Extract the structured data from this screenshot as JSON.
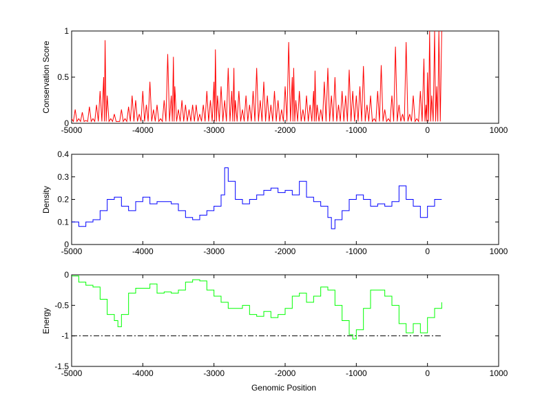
{
  "chart_data": [
    {
      "type": "line",
      "title": "",
      "xlabel": "",
      "ylabel": "Conservation Score",
      "xlim": [
        -5000,
        1000
      ],
      "ylim": [
        0,
        1
      ],
      "xticks": [
        "-5000",
        "-4000",
        "-3000",
        "-2000",
        "-1000",
        "0",
        "1000"
      ],
      "yticks": [
        "0",
        "0.5",
        "1"
      ],
      "ytick_values": [
        0,
        0.5,
        1
      ],
      "color": "#ff0000",
      "series": [
        {
          "name": "conservation",
          "x": [
            -5000,
            -4950,
            -4900,
            -4850,
            -4800,
            -4750,
            -4700,
            -4650,
            -4600,
            -4550,
            -4530,
            -4500,
            -4450,
            -4400,
            -4350,
            -4300,
            -4250,
            -4200,
            -4150,
            -4100,
            -4050,
            -4000,
            -3950,
            -3900,
            -3850,
            -3800,
            -3750,
            -3700,
            -3650,
            -3600,
            -3570,
            -3550,
            -3500,
            -3450,
            -3400,
            -3350,
            -3300,
            -3250,
            -3200,
            -3150,
            -3100,
            -3050,
            -3000,
            -2980,
            -2950,
            -2900,
            -2850,
            -2800,
            -2750,
            -2720,
            -2700,
            -2650,
            -2600,
            -2550,
            -2500,
            -2450,
            -2400,
            -2350,
            -2300,
            -2250,
            -2200,
            -2150,
            -2100,
            -2050,
            -2000,
            -1950,
            -1900,
            -1880,
            -1850,
            -1800,
            -1750,
            -1700,
            -1650,
            -1600,
            -1580,
            -1550,
            -1500,
            -1450,
            -1400,
            -1350,
            -1300,
            -1250,
            -1200,
            -1150,
            -1100,
            -1050,
            -1000,
            -950,
            -900,
            -850,
            -800,
            -750,
            -700,
            -650,
            -600,
            -550,
            -500,
            -450,
            -400,
            -350,
            -300,
            -250,
            -200,
            -150,
            -100,
            -50,
            -20,
            0,
            30,
            60,
            100,
            130,
            160,
            200
          ],
          "y": [
            0.05,
            0.15,
            0.05,
            0.12,
            0.03,
            0.18,
            0.05,
            0.2,
            0.35,
            0.5,
            0.9,
            0.3,
            0.05,
            0.1,
            0.02,
            0.15,
            0.05,
            0.18,
            0.3,
            0.25,
            0.1,
            0.35,
            0.2,
            0.45,
            0.15,
            0.2,
            0.05,
            0.25,
            0.75,
            0.3,
            0.72,
            0.4,
            0.15,
            0.25,
            0.2,
            0.15,
            0.2,
            0.2,
            0.1,
            0.2,
            0.35,
            0.25,
            0.45,
            0.8,
            0.3,
            0.4,
            0.25,
            0.6,
            0.35,
            0.6,
            0.25,
            0.35,
            0.15,
            0.3,
            0.2,
            0.35,
            0.6,
            0.25,
            0.45,
            0.3,
            0.2,
            0.35,
            0.25,
            0.15,
            0.4,
            0.88,
            0.5,
            0.6,
            0.25,
            0.35,
            0.15,
            0.3,
            0.2,
            0.35,
            0.57,
            0.2,
            0.15,
            0.45,
            0.6,
            0.3,
            0.5,
            0.2,
            0.35,
            0.3,
            0.58,
            0.35,
            0.3,
            0.4,
            0.62,
            0.2,
            0.3,
            0.05,
            0.35,
            0.63,
            0.15,
            0.05,
            0.3,
            0.83,
            0.2,
            0.1,
            0.88,
            0.1,
            0.3,
            0.05,
            0.35,
            0.7,
            0.2,
            0.55,
            1.0,
            0.3,
            1.0,
            0.4,
            1.0,
            1.0
          ]
        }
      ]
    },
    {
      "type": "line",
      "title": "",
      "xlabel": "",
      "ylabel": "Density",
      "xlim": [
        -5000,
        1000
      ],
      "ylim": [
        0,
        0.4
      ],
      "xticks": [
        "-5000",
        "-4000",
        "-3000",
        "-2000",
        "-1000",
        "0",
        "1000"
      ],
      "yticks": [
        "0",
        "0.1",
        "0.2",
        "0.3",
        "0.4"
      ],
      "ytick_values": [
        0,
        0.1,
        0.2,
        0.3,
        0.4
      ],
      "color": "#0000ff",
      "series": [
        {
          "name": "density",
          "x": [
            -5000,
            -4900,
            -4800,
            -4700,
            -4600,
            -4500,
            -4400,
            -4300,
            -4200,
            -4100,
            -4000,
            -3900,
            -3800,
            -3700,
            -3600,
            -3500,
            -3400,
            -3300,
            -3200,
            -3100,
            -3000,
            -2900,
            -2850,
            -2800,
            -2700,
            -2600,
            -2500,
            -2400,
            -2300,
            -2200,
            -2100,
            -2000,
            -1900,
            -1800,
            -1700,
            -1600,
            -1500,
            -1400,
            -1350,
            -1300,
            -1200,
            -1100,
            -1000,
            -900,
            -800,
            -700,
            -600,
            -500,
            -400,
            -300,
            -200,
            -100,
            0,
            100,
            200
          ],
          "y": [
            0.1,
            0.08,
            0.1,
            0.11,
            0.15,
            0.2,
            0.21,
            0.17,
            0.15,
            0.19,
            0.21,
            0.18,
            0.19,
            0.19,
            0.18,
            0.15,
            0.12,
            0.11,
            0.13,
            0.15,
            0.17,
            0.22,
            0.34,
            0.28,
            0.2,
            0.18,
            0.2,
            0.22,
            0.24,
            0.25,
            0.23,
            0.24,
            0.22,
            0.28,
            0.21,
            0.19,
            0.17,
            0.12,
            0.07,
            0.11,
            0.15,
            0.2,
            0.22,
            0.2,
            0.17,
            0.18,
            0.17,
            0.19,
            0.26,
            0.2,
            0.17,
            0.12,
            0.17,
            0.2,
            0.2
          ]
        }
      ]
    },
    {
      "type": "line",
      "title": "",
      "xlabel": "Genomic Position",
      "ylabel": "Energy",
      "xlim": [
        -5000,
        1000
      ],
      "ylim": [
        -1.5,
        0
      ],
      "xticks": [
        "-5000",
        "-4000",
        "-3000",
        "-2000",
        "-1000",
        "0",
        "1000"
      ],
      "yticks": [
        "-1.5",
        "-1",
        "-0.5",
        "0"
      ],
      "ytick_values": [
        -1.5,
        -1,
        -0.5,
        0
      ],
      "color": "#00ff00",
      "threshold": {
        "y": -1,
        "x": [
          -5000,
          200
        ],
        "style": "dash-dot",
        "color": "#000000"
      },
      "series": [
        {
          "name": "energy",
          "x": [
            -5000,
            -4900,
            -4800,
            -4700,
            -4600,
            -4500,
            -4400,
            -4350,
            -4300,
            -4200,
            -4100,
            -4000,
            -3900,
            -3800,
            -3700,
            -3600,
            -3500,
            -3400,
            -3300,
            -3200,
            -3100,
            -3000,
            -2900,
            -2800,
            -2700,
            -2600,
            -2500,
            -2400,
            -2300,
            -2200,
            -2100,
            -2000,
            -1900,
            -1800,
            -1700,
            -1600,
            -1500,
            -1400,
            -1300,
            -1200,
            -1100,
            -1050,
            -1000,
            -900,
            -800,
            -700,
            -600,
            -500,
            -400,
            -300,
            -200,
            -100,
            0,
            100,
            200
          ],
          "y": [
            -0.02,
            -0.12,
            -0.17,
            -0.2,
            -0.4,
            -0.65,
            -0.75,
            -0.85,
            -0.65,
            -0.3,
            -0.22,
            -0.22,
            -0.15,
            -0.3,
            -0.28,
            -0.3,
            -0.25,
            -0.12,
            -0.08,
            -0.1,
            -0.25,
            -0.35,
            -0.45,
            -0.55,
            -0.55,
            -0.5,
            -0.65,
            -0.68,
            -0.6,
            -0.7,
            -0.65,
            -0.55,
            -0.35,
            -0.3,
            -0.45,
            -0.35,
            -0.2,
            -0.25,
            -0.5,
            -0.75,
            -0.98,
            -1.05,
            -0.9,
            -0.55,
            -0.25,
            -0.25,
            -0.35,
            -0.5,
            -0.8,
            -0.95,
            -0.8,
            -0.95,
            -0.7,
            -0.55,
            -0.45
          ]
        }
      ]
    }
  ]
}
